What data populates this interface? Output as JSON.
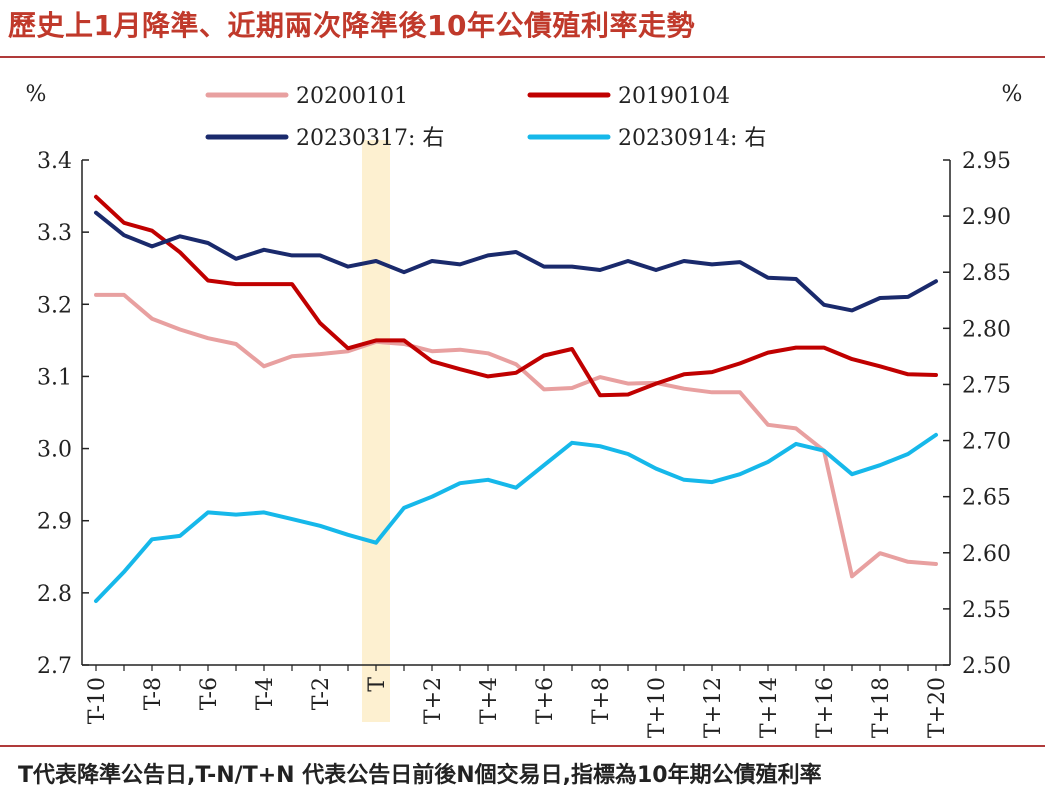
{
  "title": "歷史上1月降準、近期兩次降準後10年公債殖利率走勢",
  "note": "T代表降準公告日,T-N/T+N 代表公告日前後N個交易日,指標為10年期公債殖利率",
  "chart_data": {
    "type": "line",
    "left_unit": "%",
    "right_unit": "%",
    "left_ylim": [
      2.7,
      3.4
    ],
    "right_ylim": [
      2.5,
      2.95
    ],
    "left_ticks": [
      "3.4",
      "3.3",
      "3.2",
      "3.1",
      "3.0",
      "2.9",
      "2.8",
      "2.7"
    ],
    "right_ticks": [
      "2.95",
      "2.90",
      "2.85",
      "2.80",
      "2.75",
      "2.70",
      "2.65",
      "2.60",
      "2.55",
      "2.50"
    ],
    "x": [
      -10,
      -9,
      -8,
      -7,
      -6,
      -5,
      -4,
      -3,
      -2,
      -1,
      0,
      1,
      2,
      3,
      4,
      5,
      6,
      7,
      8,
      9,
      10,
      11,
      12,
      13,
      14,
      15,
      16,
      17,
      18,
      19,
      20
    ],
    "x_tick_labels": [
      "T-10",
      "T-8",
      "T-6",
      "T-4",
      "T-2",
      "T",
      "T+2",
      "T+4",
      "T+6",
      "T+8",
      "T+10",
      "T+12",
      "T+14",
      "T+16",
      "T+18",
      "T+20"
    ],
    "highlight_x": 0,
    "series": [
      {
        "name": "20200101",
        "axis": "left",
        "color": "#e8a0a0",
        "values": [
          3.213,
          3.213,
          3.18,
          3.165,
          3.153,
          3.145,
          3.114,
          3.128,
          3.131,
          3.135,
          3.148,
          3.145,
          3.135,
          3.137,
          3.132,
          3.117,
          3.082,
          3.084,
          3.099,
          3.09,
          3.091,
          3.083,
          3.078,
          3.078,
          3.033,
          3.028,
          2.997,
          2.823,
          2.855,
          2.843,
          2.84
        ]
      },
      {
        "name": "20190104",
        "axis": "left",
        "color": "#c00000",
        "values": [
          3.349,
          3.313,
          3.302,
          3.272,
          3.233,
          3.228,
          3.228,
          3.228,
          3.174,
          3.139,
          3.15,
          3.15,
          3.121,
          3.11,
          3.1,
          3.105,
          3.129,
          3.138,
          3.074,
          3.075,
          3.09,
          3.103,
          3.106,
          3.118,
          3.133,
          3.14,
          3.14,
          3.124,
          3.114,
          3.103,
          3.102
        ]
      },
      {
        "name": "20230317: 右",
        "axis": "right",
        "color": "#1a2a6c",
        "values": [
          2.903,
          2.883,
          2.873,
          2.882,
          2.876,
          2.862,
          2.87,
          2.865,
          2.865,
          2.855,
          2.86,
          2.85,
          2.86,
          2.857,
          2.865,
          2.868,
          2.855,
          2.855,
          2.852,
          2.86,
          2.852,
          2.86,
          2.857,
          2.859,
          2.845,
          2.844,
          2.821,
          2.816,
          2.827,
          2.828,
          2.842
        ]
      },
      {
        "name": "20230914: 右",
        "axis": "right",
        "color": "#16b8ea",
        "values": [
          2.557,
          2.583,
          2.612,
          2.615,
          2.636,
          2.634,
          2.636,
          2.63,
          2.624,
          2.616,
          2.609,
          2.64,
          2.65,
          2.662,
          2.665,
          2.658,
          2.678,
          2.698,
          2.695,
          2.688,
          2.675,
          2.665,
          2.663,
          2.67,
          2.681,
          2.697,
          2.691,
          2.67,
          2.678,
          2.688,
          2.705
        ]
      }
    ]
  }
}
